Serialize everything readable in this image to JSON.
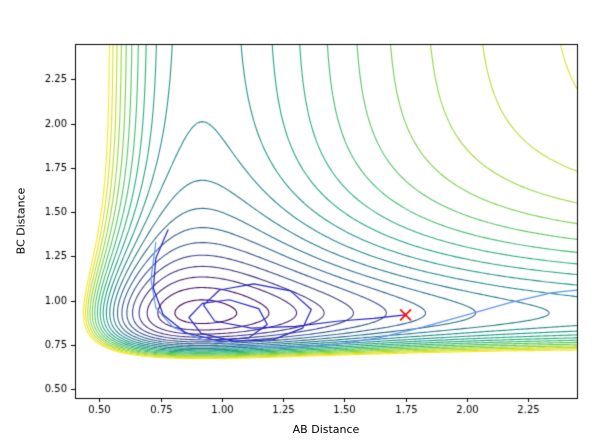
{
  "figure": {
    "background": "#ffffff",
    "frame_color": "#000000",
    "tick_color": "#000000",
    "text_color": "#000000"
  },
  "chart_data": {
    "type": "contour",
    "title": "",
    "xlabel": "AB Distance",
    "ylabel": "BC Distance",
    "xlim": [
      0.4,
      2.45
    ],
    "ylim": [
      0.45,
      2.45
    ],
    "xticks": [
      0.5,
      0.75,
      1.0,
      1.25,
      1.5,
      1.75,
      2.0,
      2.25
    ],
    "xtick_labels": [
      "0.50",
      "0.75",
      "1.00",
      "1.25",
      "1.50",
      "1.75",
      "2.00",
      "2.25"
    ],
    "yticks": [
      0.5,
      0.75,
      1.0,
      1.25,
      1.5,
      1.75,
      2.0,
      2.25
    ],
    "ytick_labels": [
      "0.50",
      "0.75",
      "1.00",
      "1.25",
      "1.50",
      "1.75",
      "2.00",
      "2.25"
    ],
    "grid": false,
    "legend": null,
    "colormap": "viridis",
    "colormap_stops": [
      [
        0.0,
        "#440154"
      ],
      [
        0.125,
        "#472d7b"
      ],
      [
        0.25,
        "#3b528b"
      ],
      [
        0.375,
        "#2c728e"
      ],
      [
        0.5,
        "#21918c"
      ],
      [
        0.625,
        "#28ae80"
      ],
      [
        0.75,
        "#5ec962"
      ],
      [
        0.875,
        "#addc30"
      ],
      [
        1.0,
        "#fde725"
      ]
    ],
    "surface_model": {
      "description": "potential energy surface approximated as sum of two Morse-type terms: V = (1-exp(-ax*(x-x0)))^2 + (1-exp(-ay*(y-y0)))^2",
      "ax": 1.8,
      "x0": 0.92,
      "ay": 3.4,
      "y0": 0.93
    },
    "levels": [
      0.05,
      0.15,
      0.25,
      0.35,
      0.45,
      0.55,
      0.65,
      0.75,
      0.85,
      0.95,
      1.05,
      1.15,
      1.25,
      1.35,
      1.45,
      1.55,
      1.65,
      1.75,
      1.85,
      1.95
    ],
    "trajectories": [
      {
        "name": "optimization-path-secondary",
        "color": "#6495ed",
        "line_width": 1.2,
        "points": [
          [
            0.73,
            1.33
          ],
          [
            0.71,
            1.12
          ],
          [
            0.73,
            0.96
          ],
          [
            0.8,
            0.85
          ],
          [
            0.92,
            0.78
          ],
          [
            1.08,
            0.745
          ],
          [
            1.26,
            0.735
          ],
          [
            1.45,
            0.75
          ],
          [
            1.64,
            0.79
          ],
          [
            1.82,
            0.85
          ],
          [
            2.0,
            0.92
          ],
          [
            2.18,
            0.99
          ],
          [
            2.35,
            1.045
          ],
          [
            2.45,
            1.06
          ]
        ]
      },
      {
        "name": "optimization-path-primary",
        "color": "#2424cc",
        "line_width": 1.2,
        "points": [
          [
            0.78,
            1.4
          ],
          [
            0.73,
            1.24
          ],
          [
            0.72,
            1.07
          ],
          [
            0.76,
            0.92
          ],
          [
            0.85,
            0.82
          ],
          [
            0.98,
            0.775
          ],
          [
            1.11,
            0.79
          ],
          [
            1.185,
            0.865
          ],
          [
            1.15,
            0.955
          ],
          [
            1.03,
            1.005
          ],
          [
            0.92,
            0.985
          ],
          [
            0.865,
            0.905
          ],
          [
            0.915,
            0.815
          ],
          [
            1.05,
            0.77
          ],
          [
            1.21,
            0.78
          ],
          [
            1.33,
            0.845
          ],
          [
            1.365,
            0.95
          ],
          [
            1.28,
            1.055
          ],
          [
            1.13,
            1.095
          ],
          [
            0.99,
            1.06
          ],
          [
            0.925,
            0.975
          ],
          [
            0.97,
            0.885
          ],
          [
            1.12,
            0.845
          ],
          [
            1.3,
            0.855
          ],
          [
            1.48,
            0.885
          ],
          [
            1.62,
            0.9
          ],
          [
            1.75,
            0.92
          ]
        ]
      }
    ],
    "marker": {
      "x": 1.75,
      "y": 0.92,
      "symbol": "x",
      "color": "#ff0000",
      "size": 5
    }
  }
}
